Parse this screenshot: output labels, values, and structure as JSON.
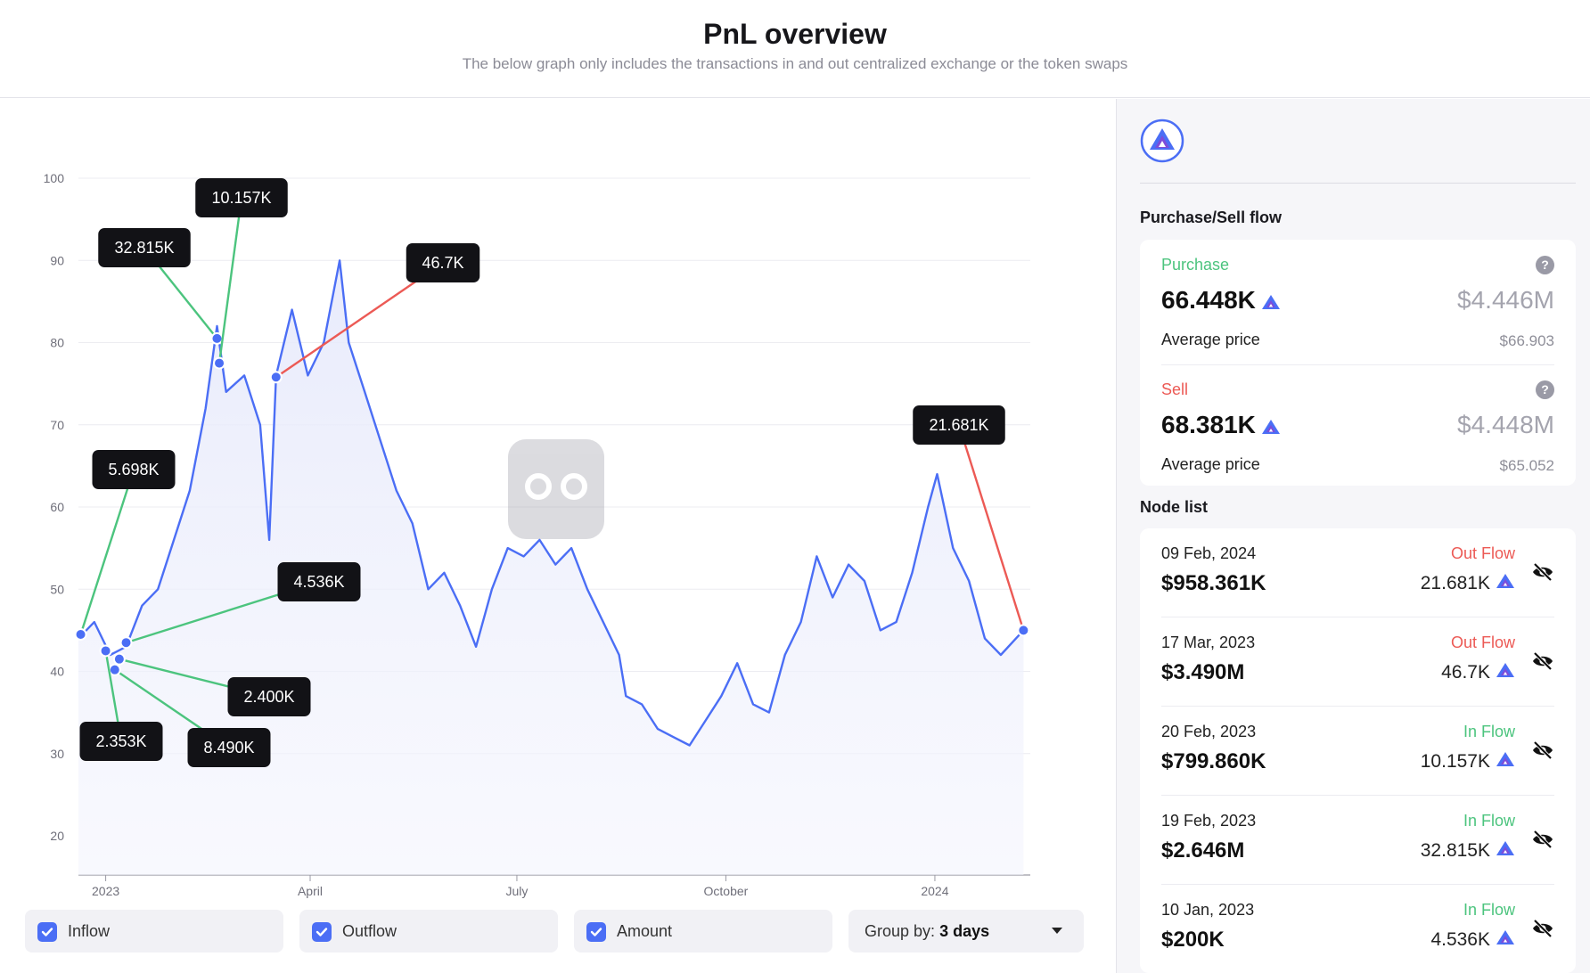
{
  "header": {
    "title": "PnL overview",
    "subtitle": "The below graph only includes the transactions in and out centralized exchange or the token swaps"
  },
  "colors": {
    "accent": "#4b6ef5",
    "inflow": "#4cc47e",
    "outflow": "#ec5a55",
    "tooltip_bg": "#121216"
  },
  "chart_data": {
    "type": "line",
    "ylim": [
      20,
      100
    ],
    "y_ticks": [
      20,
      30,
      40,
      50,
      60,
      70,
      80,
      90,
      100
    ],
    "x_ticks": [
      {
        "label": "2023",
        "date": "2023-01-01"
      },
      {
        "label": "April",
        "date": "2023-04-01"
      },
      {
        "label": "July",
        "date": "2023-07-01"
      },
      {
        "label": "October",
        "date": "2023-10-01"
      },
      {
        "label": "2024",
        "date": "2024-01-01"
      }
    ],
    "xlim": [
      "2022-12-20",
      "2024-02-12"
    ],
    "series": [
      {
        "points": [
          [
            "2022-12-20",
            44
          ],
          [
            "2022-12-27",
            46
          ],
          [
            "2023-01-03",
            42
          ],
          [
            "2023-01-10",
            43
          ],
          [
            "2023-01-17",
            48
          ],
          [
            "2023-01-24",
            50
          ],
          [
            "2023-01-31",
            56
          ],
          [
            "2023-02-07",
            62
          ],
          [
            "2023-02-14",
            72
          ],
          [
            "2023-02-19",
            82
          ],
          [
            "2023-02-23",
            74
          ],
          [
            "2023-03-03",
            76
          ],
          [
            "2023-03-10",
            70
          ],
          [
            "2023-03-14",
            56
          ],
          [
            "2023-03-17",
            76
          ],
          [
            "2023-03-24",
            84
          ],
          [
            "2023-03-31",
            76
          ],
          [
            "2023-04-07",
            80
          ],
          [
            "2023-04-14",
            90
          ],
          [
            "2023-04-18",
            80
          ],
          [
            "2023-04-25",
            74
          ],
          [
            "2023-05-02",
            68
          ],
          [
            "2023-05-09",
            62
          ],
          [
            "2023-05-16",
            58
          ],
          [
            "2023-05-23",
            50
          ],
          [
            "2023-05-30",
            52
          ],
          [
            "2023-06-06",
            48
          ],
          [
            "2023-06-13",
            43
          ],
          [
            "2023-06-20",
            50
          ],
          [
            "2023-06-27",
            55
          ],
          [
            "2023-07-04",
            54
          ],
          [
            "2023-07-11",
            56
          ],
          [
            "2023-07-18",
            53
          ],
          [
            "2023-07-25",
            55
          ],
          [
            "2023-08-01",
            50
          ],
          [
            "2023-08-08",
            46
          ],
          [
            "2023-08-15",
            42
          ],
          [
            "2023-08-18",
            37
          ],
          [
            "2023-08-25",
            36
          ],
          [
            "2023-09-01",
            33
          ],
          [
            "2023-09-08",
            32
          ],
          [
            "2023-09-15",
            31
          ],
          [
            "2023-09-22",
            34
          ],
          [
            "2023-09-29",
            37
          ],
          [
            "2023-10-06",
            41
          ],
          [
            "2023-10-13",
            36
          ],
          [
            "2023-10-20",
            35
          ],
          [
            "2023-10-27",
            42
          ],
          [
            "2023-11-03",
            46
          ],
          [
            "2023-11-10",
            54
          ],
          [
            "2023-11-17",
            49
          ],
          [
            "2023-11-24",
            53
          ],
          [
            "2023-12-01",
            51
          ],
          [
            "2023-12-08",
            45
          ],
          [
            "2023-12-15",
            46
          ],
          [
            "2023-12-22",
            52
          ],
          [
            "2023-12-29",
            60
          ],
          [
            "2024-01-02",
            64
          ],
          [
            "2024-01-09",
            55
          ],
          [
            "2024-01-16",
            51
          ],
          [
            "2024-01-23",
            44
          ],
          [
            "2024-01-30",
            42
          ],
          [
            "2024-02-09",
            45
          ]
        ]
      }
    ],
    "markers": [
      {
        "label": "32.815K",
        "date": "2023-02-19",
        "value": 80.5,
        "flow": "in"
      },
      {
        "label": "10.157K",
        "date": "2023-02-20",
        "value": 77.5,
        "flow": "in"
      },
      {
        "label": "46.7K",
        "date": "2023-03-17",
        "value": 75.8,
        "flow": "out"
      },
      {
        "label": "5.698K",
        "date": "2022-12-21",
        "value": 44.5,
        "flow": "in"
      },
      {
        "label": "4.536K",
        "date": "2023-01-10",
        "value": 43.5,
        "flow": "in"
      },
      {
        "label": "2.400K",
        "date": "2023-01-07",
        "value": 41.5,
        "flow": "in"
      },
      {
        "label": "8.490K",
        "date": "2023-01-05",
        "value": 40.2,
        "flow": "in"
      },
      {
        "label": "2.353K",
        "date": "2023-01-01",
        "value": 42.5,
        "flow": "in"
      },
      {
        "label": "21.681K",
        "date": "2024-02-09",
        "value": 45.0,
        "flow": "out"
      }
    ]
  },
  "controls": {
    "inflow": "Inflow",
    "outflow": "Outflow",
    "amount": "Amount",
    "group_by_label": "Group by:",
    "group_by_value": "3 days"
  },
  "sidebar": {
    "token_icon": "token-logo-icon",
    "flow_title": "Purchase/Sell flow",
    "purchase": {
      "label": "Purchase",
      "amount": "66.448K",
      "usd": "$4.446M",
      "avg_label": "Average price",
      "avg_value": "$66.903",
      "help": "?"
    },
    "sell": {
      "label": "Sell",
      "amount": "68.381K",
      "usd": "$4.448M",
      "avg_label": "Average price",
      "avg_value": "$65.052",
      "help": "?"
    },
    "node_title": "Node list",
    "nodes": [
      {
        "date": "09 Feb, 2024",
        "value": "$958.361K",
        "type": "Out Flow",
        "amount": "21.681K"
      },
      {
        "date": "17 Mar, 2023",
        "value": "$3.490M",
        "type": "Out Flow",
        "amount": "46.7K"
      },
      {
        "date": "20 Feb, 2023",
        "value": "$799.860K",
        "type": "In Flow",
        "amount": "10.157K"
      },
      {
        "date": "19 Feb, 2023",
        "value": "$2.646M",
        "type": "In Flow",
        "amount": "32.815K"
      },
      {
        "date": "10 Jan, 2023",
        "value": "$200K",
        "type": "In Flow",
        "amount": "4.536K"
      }
    ]
  }
}
